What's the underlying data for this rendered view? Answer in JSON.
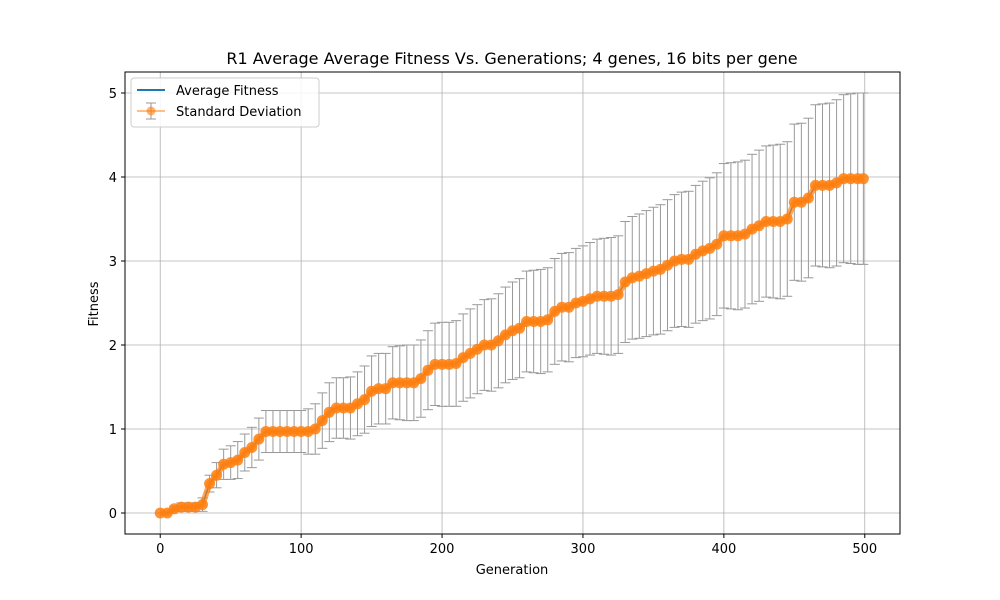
{
  "chart_data": {
    "type": "line",
    "title": "R1 Average Average Fitness Vs. Generations; 4 genes, 16 bits per gene",
    "xlabel": "Generation",
    "ylabel": "Fitness",
    "xlim": [
      -25,
      525
    ],
    "ylim": [
      -0.25,
      5.25
    ],
    "xticks": [
      0,
      100,
      200,
      300,
      400,
      500
    ],
    "yticks": [
      0,
      1,
      2,
      3,
      4,
      5
    ],
    "grid": true,
    "legend_position": "top-left",
    "colors": {
      "average_line": "#1f77b4",
      "markers": "#ff7f0e",
      "error_bars": "#999999"
    },
    "series": [
      {
        "name": "Average Fitness",
        "style": "line",
        "x": [
          0,
          5,
          10,
          15,
          20,
          25,
          30,
          35,
          40,
          45,
          50,
          55,
          60,
          65,
          70,
          75,
          80,
          85,
          90,
          95,
          100,
          105,
          110,
          115,
          120,
          125,
          130,
          135,
          140,
          145,
          150,
          155,
          160,
          165,
          170,
          175,
          180,
          185,
          190,
          195,
          200,
          205,
          210,
          215,
          220,
          225,
          230,
          235,
          240,
          245,
          250,
          255,
          260,
          265,
          270,
          275,
          280,
          285,
          290,
          295,
          300,
          305,
          310,
          315,
          320,
          325,
          330,
          335,
          340,
          345,
          350,
          355,
          360,
          365,
          370,
          375,
          380,
          385,
          390,
          395,
          400,
          405,
          410,
          415,
          420,
          425,
          430,
          435,
          440,
          445,
          450,
          455,
          460,
          465,
          470,
          475,
          480,
          485,
          490,
          495,
          499
        ],
        "y": [
          0.0,
          0.0,
          0.05,
          0.07,
          0.07,
          0.07,
          0.1,
          0.35,
          0.45,
          0.58,
          0.6,
          0.63,
          0.72,
          0.78,
          0.88,
          0.97,
          0.97,
          0.97,
          0.97,
          0.97,
          0.97,
          0.97,
          1.0,
          1.1,
          1.2,
          1.25,
          1.25,
          1.25,
          1.3,
          1.35,
          1.45,
          1.48,
          1.48,
          1.55,
          1.55,
          1.55,
          1.55,
          1.6,
          1.7,
          1.77,
          1.77,
          1.77,
          1.78,
          1.85,
          1.9,
          1.95,
          2.0,
          2.0,
          2.05,
          2.12,
          2.17,
          2.2,
          2.28,
          2.28,
          2.28,
          2.3,
          2.4,
          2.45,
          2.45,
          2.5,
          2.52,
          2.55,
          2.58,
          2.58,
          2.58,
          2.6,
          2.75,
          2.8,
          2.82,
          2.85,
          2.88,
          2.9,
          2.95,
          3.0,
          3.02,
          3.02,
          3.08,
          3.12,
          3.15,
          3.2,
          3.3,
          3.3,
          3.3,
          3.32,
          3.38,
          3.42,
          3.47,
          3.47,
          3.47,
          3.5,
          3.7,
          3.7,
          3.75,
          3.9,
          3.9,
          3.9,
          3.93,
          3.98,
          3.98,
          3.98,
          3.98
        ]
      },
      {
        "name": "Standard Deviation",
        "style": "errorbar",
        "x": [
          0,
          5,
          10,
          15,
          20,
          25,
          30,
          35,
          40,
          45,
          50,
          55,
          60,
          65,
          70,
          75,
          80,
          85,
          90,
          95,
          100,
          105,
          110,
          115,
          120,
          125,
          130,
          135,
          140,
          145,
          150,
          155,
          160,
          165,
          170,
          175,
          180,
          185,
          190,
          195,
          200,
          205,
          210,
          215,
          220,
          225,
          230,
          235,
          240,
          245,
          250,
          255,
          260,
          265,
          270,
          275,
          280,
          285,
          290,
          295,
          300,
          305,
          310,
          315,
          320,
          325,
          330,
          335,
          340,
          345,
          350,
          355,
          360,
          365,
          370,
          375,
          380,
          385,
          390,
          395,
          400,
          405,
          410,
          415,
          420,
          425,
          430,
          435,
          440,
          445,
          450,
          455,
          460,
          465,
          470,
          475,
          480,
          485,
          490,
          495,
          499
        ],
        "y": [
          0.0,
          0.0,
          0.05,
          0.07,
          0.07,
          0.07,
          0.1,
          0.35,
          0.45,
          0.58,
          0.6,
          0.63,
          0.72,
          0.78,
          0.88,
          0.97,
          0.97,
          0.97,
          0.97,
          0.97,
          0.97,
          0.97,
          1.0,
          1.1,
          1.2,
          1.25,
          1.25,
          1.25,
          1.3,
          1.35,
          1.45,
          1.48,
          1.48,
          1.55,
          1.55,
          1.55,
          1.55,
          1.6,
          1.7,
          1.77,
          1.77,
          1.77,
          1.78,
          1.85,
          1.9,
          1.95,
          2.0,
          2.0,
          2.05,
          2.12,
          2.17,
          2.2,
          2.28,
          2.28,
          2.28,
          2.3,
          2.4,
          2.45,
          2.45,
          2.5,
          2.52,
          2.55,
          2.58,
          2.58,
          2.58,
          2.6,
          2.75,
          2.8,
          2.82,
          2.85,
          2.88,
          2.9,
          2.95,
          3.0,
          3.02,
          3.02,
          3.08,
          3.12,
          3.15,
          3.2,
          3.3,
          3.3,
          3.3,
          3.32,
          3.38,
          3.42,
          3.47,
          3.47,
          3.47,
          3.5,
          3.7,
          3.7,
          3.75,
          3.9,
          3.9,
          3.9,
          3.93,
          3.98,
          3.98,
          3.98,
          3.98
        ],
        "err": [
          0.0,
          0.0,
          0.03,
          0.05,
          0.05,
          0.05,
          0.08,
          0.1,
          0.15,
          0.18,
          0.2,
          0.22,
          0.22,
          0.24,
          0.25,
          0.25,
          0.25,
          0.25,
          0.25,
          0.25,
          0.25,
          0.27,
          0.3,
          0.33,
          0.35,
          0.36,
          0.36,
          0.37,
          0.38,
          0.4,
          0.42,
          0.42,
          0.42,
          0.43,
          0.44,
          0.45,
          0.45,
          0.46,
          0.47,
          0.49,
          0.5,
          0.5,
          0.51,
          0.52,
          0.53,
          0.53,
          0.54,
          0.55,
          0.56,
          0.57,
          0.58,
          0.59,
          0.6,
          0.61,
          0.62,
          0.62,
          0.63,
          0.64,
          0.65,
          0.65,
          0.66,
          0.67,
          0.68,
          0.69,
          0.7,
          0.7,
          0.72,
          0.73,
          0.74,
          0.75,
          0.76,
          0.77,
          0.78,
          0.79,
          0.8,
          0.81,
          0.82,
          0.83,
          0.84,
          0.85,
          0.86,
          0.87,
          0.88,
          0.88,
          0.89,
          0.9,
          0.9,
          0.91,
          0.92,
          0.92,
          0.93,
          0.94,
          0.95,
          0.96,
          0.97,
          0.98,
          0.99,
          1.0,
          1.01,
          1.02,
          1.02
        ]
      }
    ]
  }
}
